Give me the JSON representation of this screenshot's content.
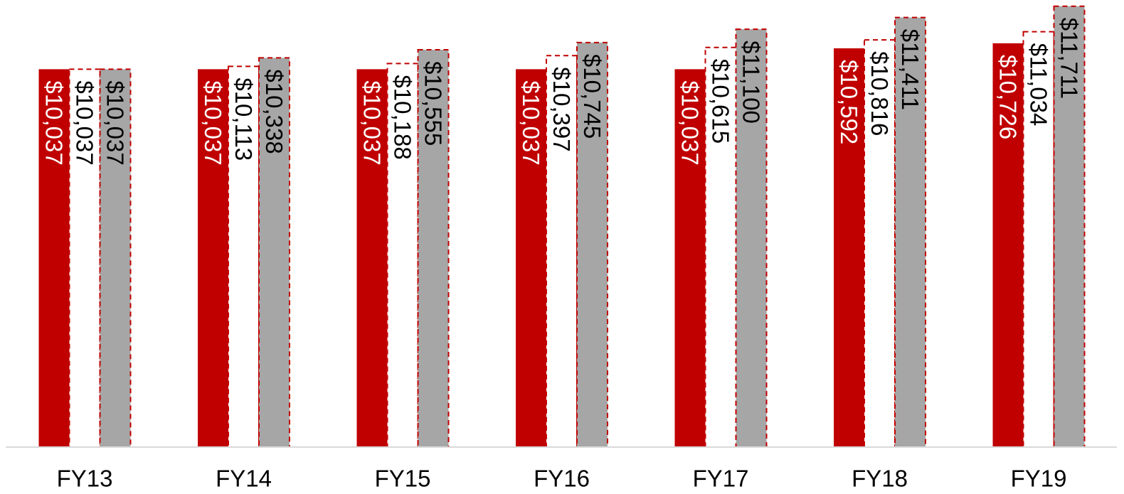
{
  "chart_data": {
    "type": "bar",
    "categories": [
      "FY13",
      "FY14",
      "FY15",
      "FY16",
      "FY17",
      "FY18",
      "FY19"
    ],
    "series": [
      {
        "values": [
          10037,
          10037,
          10037,
          10037,
          10037,
          10592,
          10726
        ],
        "labels": [
          "$10,037",
          "$10,037",
          "$10,037",
          "$10,037",
          "$10,037",
          "$10,592",
          "$10,726"
        ],
        "fill": "#c00000",
        "label_color": "#ffffff",
        "border": "solid"
      },
      {
        "values": [
          10037,
          10113,
          10188,
          10397,
          10615,
          10816,
          11034
        ],
        "labels": [
          "$10,037",
          "$10,113",
          "$10,188",
          "$10,397",
          "$10,615",
          "$10,816",
          "$11,034"
        ],
        "fill": "#ffffff",
        "label_color": "#000000",
        "border": "dashed",
        "border_color": "#c00000"
      },
      {
        "values": [
          10037,
          10338,
          10555,
          10745,
          11100,
          11411,
          11711
        ],
        "labels": [
          "$10,037",
          "$10,338",
          "$10,555",
          "$10,745",
          "$11,100",
          "$11,411",
          "$11,711"
        ],
        "fill": "#a6a6a6",
        "label_color": "#000000",
        "border": "dashed",
        "border_color": "#c00000"
      }
    ],
    "ylim": [
      0,
      11800
    ],
    "grid": false,
    "legend": "none",
    "axis_color": "#d9d9d9",
    "title": "",
    "xlabel": "",
    "ylabel": ""
  }
}
